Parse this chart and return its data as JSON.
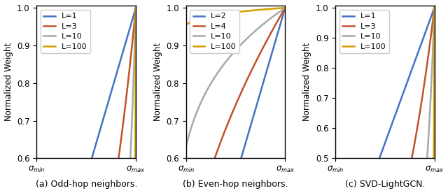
{
  "panels": [
    {
      "title": "(a) Odd-hop neighbors.",
      "L_values": [
        1,
        3,
        10,
        100
      ],
      "L_labels": [
        "L=1",
        "L=3",
        "L=10",
        "L=100"
      ],
      "ylim": [
        0.6,
        1.005
      ],
      "yticks": [
        0.6,
        0.7,
        0.8,
        0.9,
        1.0
      ],
      "type": "odd"
    },
    {
      "title": "(b) Even-hop neighbors.",
      "L_values": [
        2,
        4,
        10,
        100
      ],
      "L_labels": [
        "L=2",
        "L=4",
        "L=10",
        "L=100"
      ],
      "ylim": [
        0.6,
        1.005
      ],
      "yticks": [
        0.6,
        0.7,
        0.8,
        0.9,
        1.0
      ],
      "type": "even"
    },
    {
      "title": "(c) SVD-LightGCN.",
      "L_values": [
        1,
        3,
        10,
        100
      ],
      "L_labels": [
        "L=1",
        "L=3",
        "L=10",
        "L=100"
      ],
      "ylim": [
        0.5,
        1.005
      ],
      "yticks": [
        0.5,
        0.6,
        0.7,
        0.8,
        0.9,
        1.0
      ],
      "type": "svd"
    }
  ],
  "colors": [
    "#4472C4",
    "#C0522A",
    "#A8A8A8",
    "#D4A000"
  ],
  "sigma_min": 0.1,
  "sigma_max": 1.0,
  "n_points": 500,
  "ylabel": "Normalized Weight",
  "xlabel_min": "$\\sigma_{min}$",
  "xlabel_max": "$\\sigma_{max}$",
  "figsize": [
    6.4,
    2.76
  ],
  "dpi": 100,
  "legend_fontsize": 8,
  "axis_fontsize": 8.5,
  "caption_fontsize": 9
}
